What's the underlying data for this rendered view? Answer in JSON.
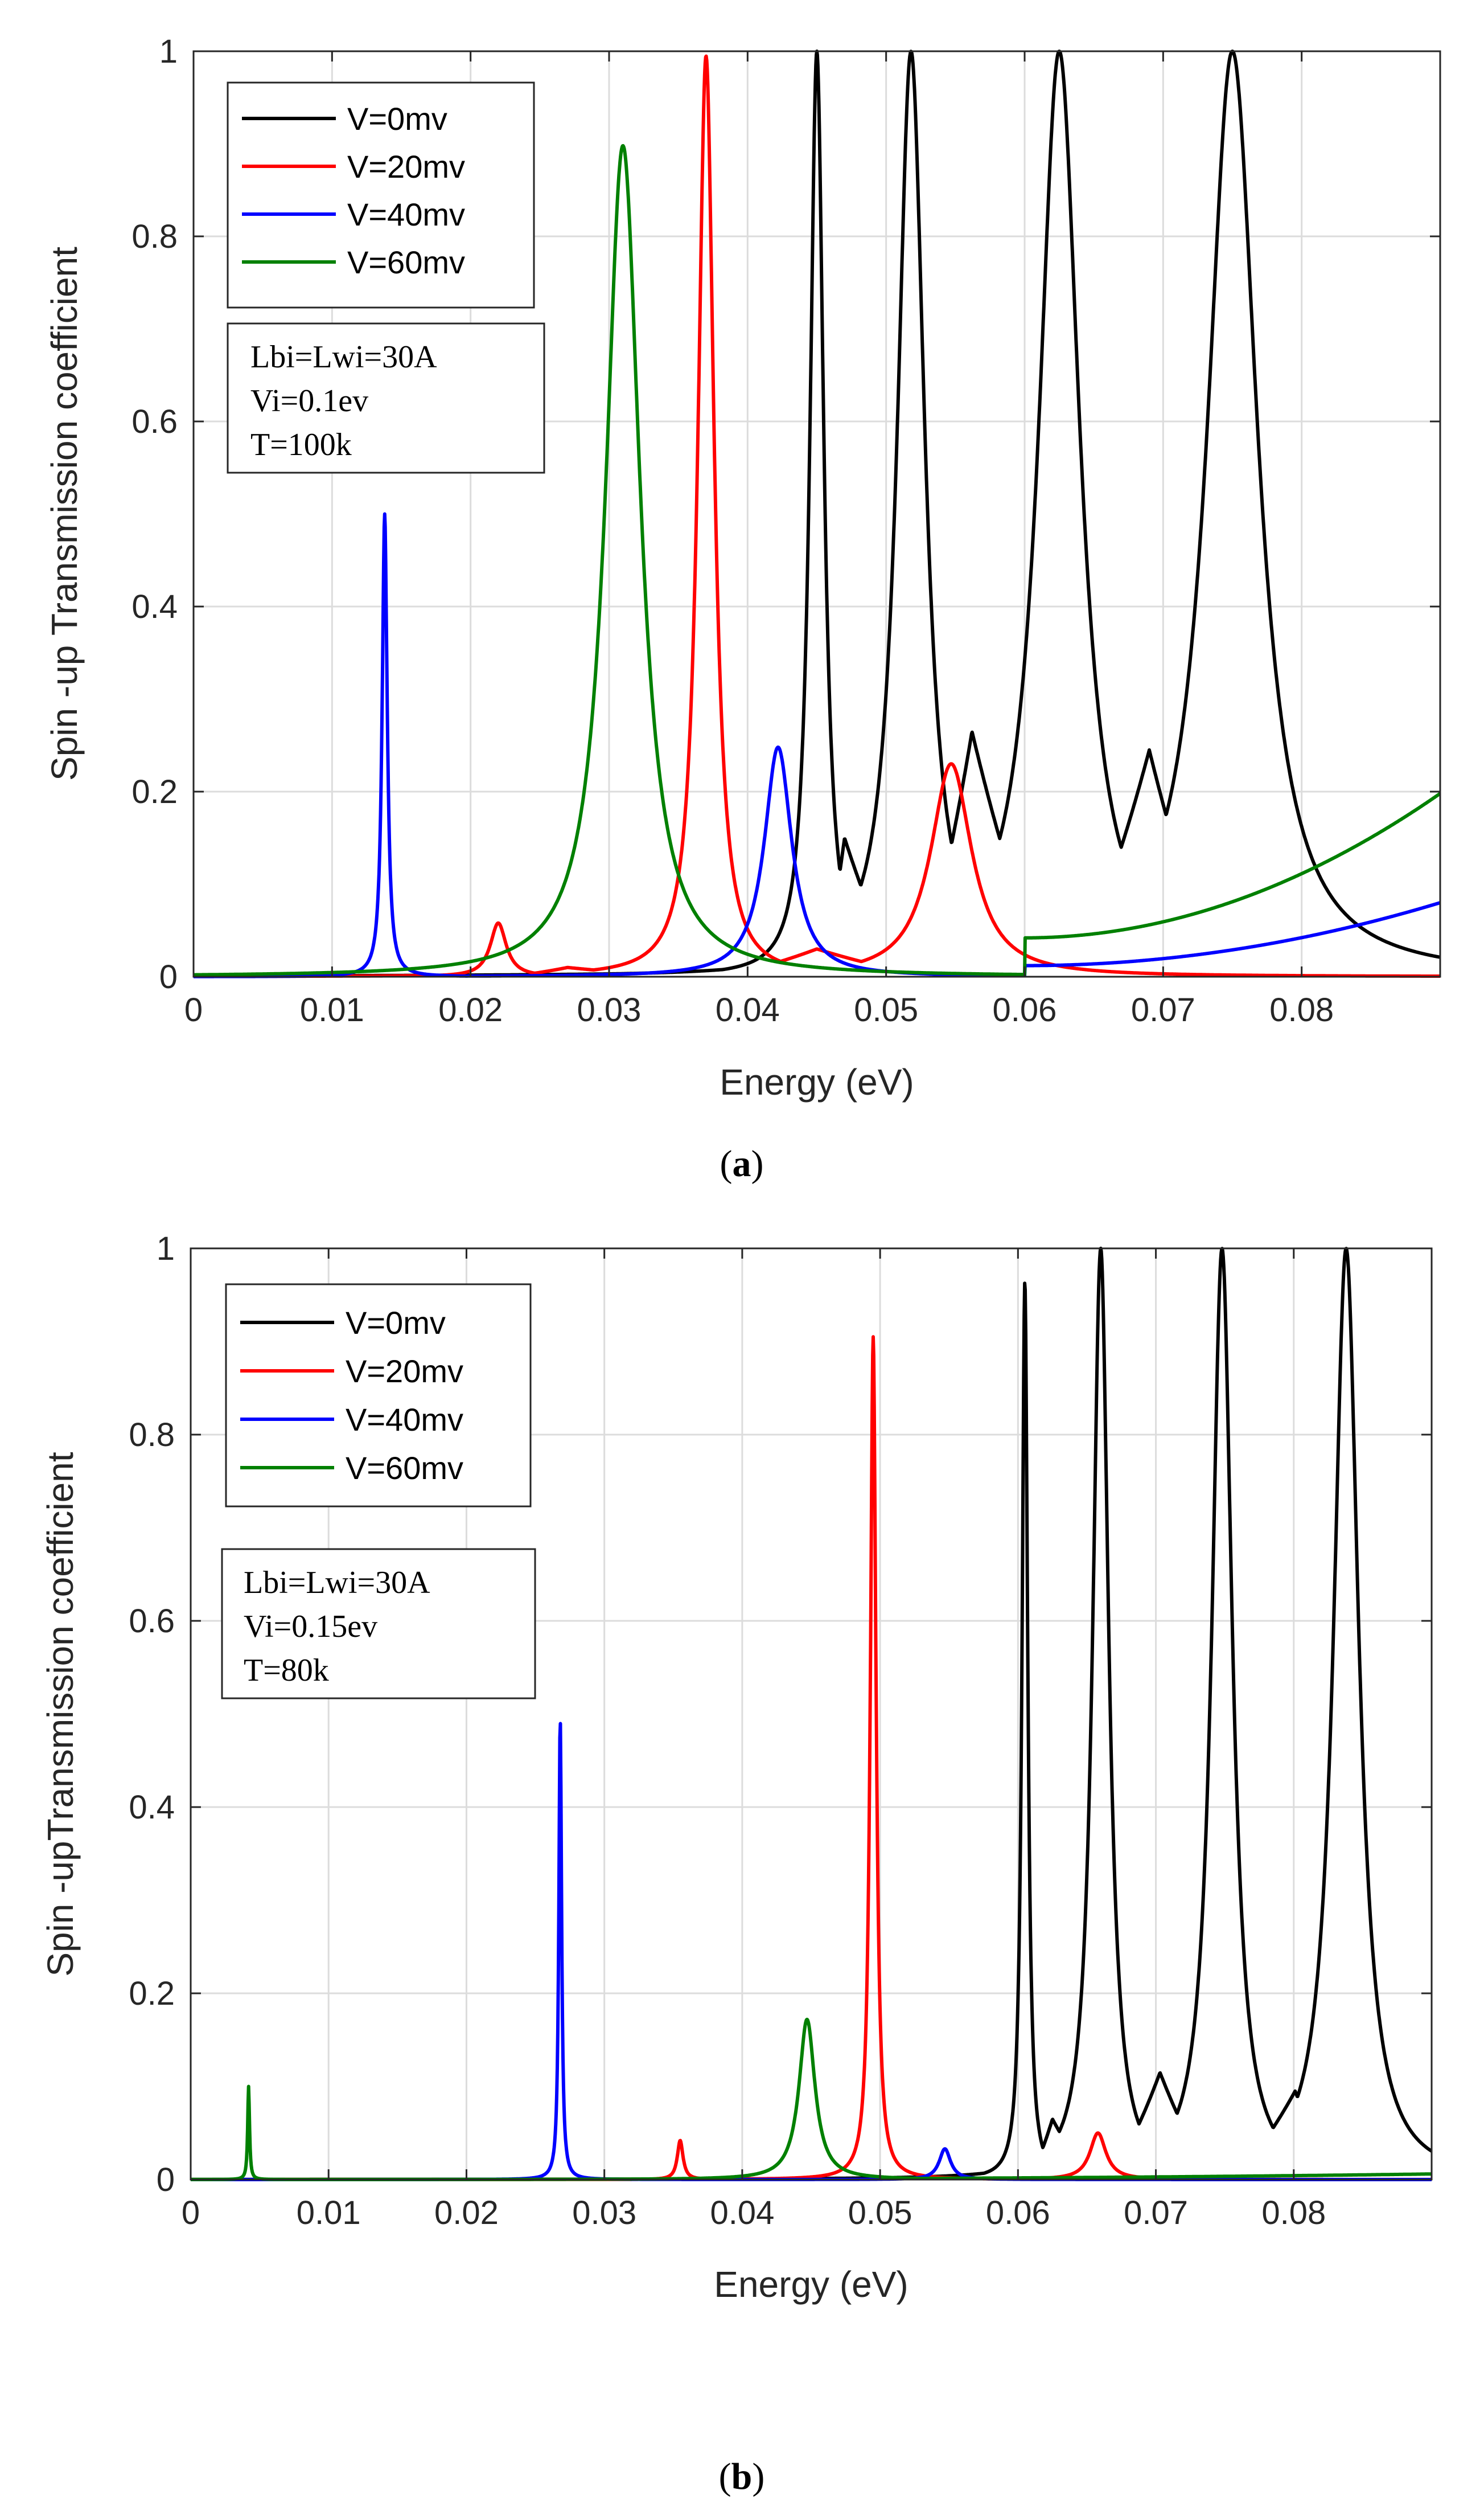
{
  "figure": {
    "caption_a": "a",
    "caption_b": "b"
  },
  "chart_data": [
    {
      "id": "a",
      "type": "line",
      "title": "",
      "xlabel": "Energy (eV)",
      "ylabel": "Spin -up Transmission coefficient",
      "xlim": [
        0,
        0.09
      ],
      "ylim": [
        0,
        1
      ],
      "xticks": [
        0,
        0.01,
        0.02,
        0.03,
        0.04,
        0.05,
        0.06,
        0.07,
        0.08
      ],
      "xtick_labels": [
        "0",
        "0.01",
        "0.02",
        "0.03",
        "0.04",
        "0.05",
        "0.06",
        "0.07",
        "0.08"
      ],
      "yticks": [
        0,
        0.2,
        0.4,
        0.6,
        0.8,
        1
      ],
      "ytick_labels": [
        "0",
        "0.2",
        "0.4",
        "0.6",
        "0.8",
        "1"
      ],
      "grid": true,
      "legend_position": "top-left",
      "annotation": [
        "Lbi=Lwi=30A",
        "Vi=0.1ev",
        "T=100k"
      ],
      "series": [
        {
          "name": "V=0mv",
          "color": "#000000",
          "baseline": 0,
          "peaks": [
            [
              0.045,
              1,
              0.0006
            ],
            [
              0.0518,
              1,
              0.0012
            ],
            [
              0.0625,
              1,
              0.0018
            ],
            [
              0.075,
              1,
              0.0022
            ]
          ],
          "valleys": [
            [
              0.047,
              0.15
            ],
            [
              0.0562,
              0.265
            ],
            [
              0.069,
              0.245
            ]
          ]
        },
        {
          "name": "V=20mv",
          "color": "#ff0000",
          "baseline": 0,
          "peaks": [
            [
              0.022,
              0.058,
              0.0007
            ],
            [
              0.037,
              0.995,
              0.0007
            ],
            [
              0.0547,
              0.23,
              0.0018
            ]
          ],
          "valleys": [
            [
              0.027,
              0.01
            ],
            [
              0.045,
              0.03
            ]
          ]
        },
        {
          "name": "V=40mv",
          "color": "#0000ff",
          "baseline": 0,
          "peaks": [
            [
              0.0138,
              0.5,
              0.00022
            ],
            [
              0.0422,
              0.248,
              0.0012
            ]
          ],
          "valleys": [
            [
              0.06,
              0.012
            ]
          ],
          "end_value": 0.08
        },
        {
          "name": "V=60mv",
          "color": "#008000",
          "baseline": 0,
          "peaks": [
            [
              0.031,
              0.898,
              0.0015
            ]
          ],
          "valleys": [
            [
              0.06,
              0.042
            ]
          ],
          "end_value": 0.198
        }
      ]
    },
    {
      "id": "b",
      "type": "line",
      "title": "",
      "xlabel": "Energy (eV)",
      "ylabel": "Spin -upTransmission coefficient",
      "xlim": [
        0,
        0.09
      ],
      "ylim": [
        0,
        1
      ],
      "xticks": [
        0,
        0.01,
        0.02,
        0.03,
        0.04,
        0.05,
        0.06,
        0.07,
        0.08
      ],
      "xtick_labels": [
        "0",
        "0.01",
        "0.02",
        "0.03",
        "0.04",
        "0.05",
        "0.06",
        "0.07",
        "0.08"
      ],
      "yticks": [
        0,
        0.2,
        0.4,
        0.6,
        0.8,
        1
      ],
      "ytick_labels": [
        "0",
        "0.2",
        "0.4",
        "0.6",
        "0.8",
        "1"
      ],
      "grid": true,
      "legend_position": "top-left",
      "annotation": [
        "Lbi=Lwi=30A",
        "Vi=0.15ev",
        "T=80k"
      ],
      "series": [
        {
          "name": "V=0mv",
          "color": "#000000",
          "baseline": 0,
          "peaks": [
            [
              0.0605,
              0.965,
              0.00025
            ],
            [
              0.066,
              1,
              0.0007
            ],
            [
              0.0748,
              1,
              0.0009
            ],
            [
              0.0838,
              1,
              0.0011
            ]
          ],
          "valleys": [
            [
              0.0625,
              0.065
            ],
            [
              0.0703,
              0.115
            ],
            [
              0.0801,
              0.095
            ]
          ]
        },
        {
          "name": "V=20mv",
          "color": "#ff0000",
          "baseline": 0,
          "peaks": [
            [
              0.0355,
              0.042,
              0.00025
            ],
            [
              0.0495,
              0.905,
              0.00025
            ],
            [
              0.0658,
              0.05,
              0.0007
            ]
          ],
          "valleys": []
        },
        {
          "name": "V=40mv",
          "color": "#0000ff",
          "baseline": 0,
          "peaks": [
            [
              0.0268,
              0.495,
              0.00012
            ],
            [
              0.0547,
              0.033,
              0.0005
            ]
          ],
          "valleys": []
        },
        {
          "name": "V=60mv",
          "color": "#008000",
          "baseline": 0,
          "peaks": [
            [
              0.0042,
              0.1,
              8e-05
            ],
            [
              0.0447,
              0.172,
              0.0007
            ]
          ],
          "valleys": [],
          "end_value": 0.006
        }
      ]
    }
  ]
}
